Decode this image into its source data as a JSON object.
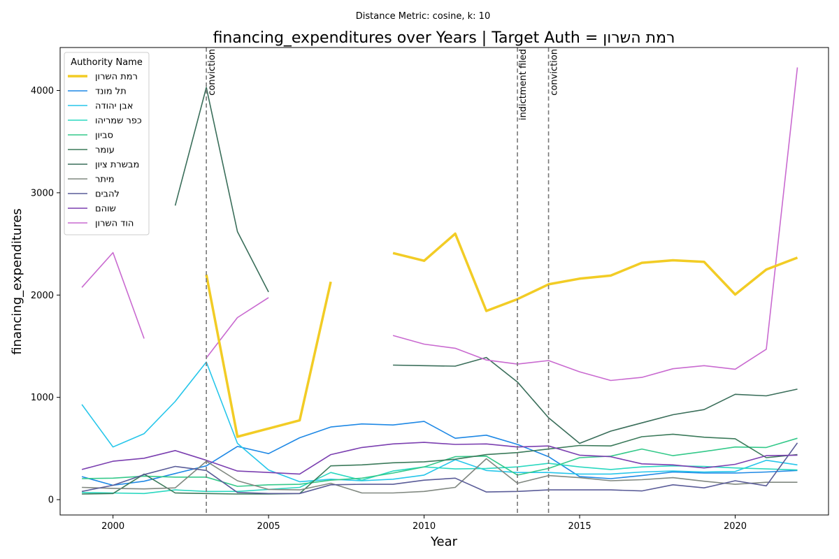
{
  "chart_data": {
    "type": "line",
    "subtitle": "Distance Metric: cosine, k: 10",
    "title": "financing_expenditures over Years | Target Auth = רמת השרון",
    "xlabel": "Year",
    "ylabel": "financing_expenditures",
    "xlim": [
      1998.3,
      2023.0
    ],
    "ylim": [
      -150,
      4420
    ],
    "xticks": [
      2000,
      2005,
      2010,
      2015,
      2020
    ],
    "yticks": [
      0,
      1000,
      2000,
      3000,
      4000
    ],
    "grid": false,
    "legend": {
      "title": "Authority Name",
      "placement": "top-left"
    },
    "events": [
      {
        "x": 2003,
        "label": "conviction"
      },
      {
        "x": 2013,
        "label": "indictment filed"
      },
      {
        "x": 2014,
        "label": "conviction"
      }
    ],
    "series": [
      {
        "name": "רמת השרון",
        "color": "#f2cc25",
        "width": 3.5,
        "target": true,
        "points": [
          [
            2003,
            2200
          ],
          [
            2004,
            615
          ],
          [
            2005,
            695
          ],
          [
            2006,
            775
          ],
          [
            2007,
            2130
          ],
          [
            2008,
            null
          ],
          [
            2009,
            2410
          ],
          [
            2010,
            2335
          ],
          [
            2011,
            2600
          ],
          [
            2012,
            1845
          ],
          [
            2013,
            1960
          ],
          [
            2014,
            2105
          ],
          [
            2015,
            2160
          ],
          [
            2016,
            2190
          ],
          [
            2017,
            2315
          ],
          [
            2018,
            2340
          ],
          [
            2019,
            2325
          ],
          [
            2020,
            2005
          ],
          [
            2021,
            2250
          ],
          [
            2022,
            2365
          ]
        ]
      },
      {
        "name": "תל מונד",
        "color": "#1e88e5",
        "width": 1.6,
        "points": [
          [
            1999,
            225
          ],
          [
            2000,
            140
          ],
          [
            2001,
            180
          ],
          [
            2002,
            255
          ],
          [
            2003,
            330
          ],
          [
            2004,
            520
          ],
          [
            2005,
            450
          ],
          [
            2006,
            605
          ],
          [
            2007,
            710
          ],
          [
            2008,
            740
          ],
          [
            2009,
            730
          ],
          [
            2010,
            765
          ],
          [
            2011,
            600
          ],
          [
            2012,
            630
          ],
          [
            2013,
            540
          ],
          [
            2014,
            420
          ],
          [
            2015,
            225
          ],
          [
            2016,
            205
          ],
          [
            2017,
            235
          ],
          [
            2018,
            270
          ],
          [
            2019,
            260
          ],
          [
            2020,
            260
          ],
          [
            2021,
            270
          ],
          [
            2022,
            285
          ]
        ]
      },
      {
        "name": "אבן יהודה",
        "color": "#26c6ea",
        "width": 1.6,
        "points": [
          [
            1999,
            930
          ],
          [
            2000,
            515
          ],
          [
            2001,
            645
          ],
          [
            2002,
            960
          ],
          [
            2003,
            1345
          ],
          [
            2004,
            550
          ],
          [
            2005,
            290
          ],
          [
            2006,
            175
          ],
          [
            2007,
            200
          ],
          [
            2008,
            185
          ],
          [
            2009,
            200
          ],
          [
            2010,
            240
          ],
          [
            2011,
            390
          ],
          [
            2012,
            285
          ],
          [
            2013,
            265
          ],
          [
            2014,
            265
          ],
          [
            2015,
            250
          ],
          [
            2016,
            250
          ],
          [
            2017,
            270
          ],
          [
            2018,
            280
          ],
          [
            2019,
            270
          ],
          [
            2020,
            275
          ],
          [
            2021,
            385
          ],
          [
            2022,
            340
          ]
        ]
      },
      {
        "name": "כפר שמריהו",
        "color": "#2ad8c0",
        "width": 1.6,
        "points": [
          [
            1999,
            70
          ],
          [
            2000,
            65
          ],
          [
            2001,
            60
          ],
          [
            2002,
            95
          ],
          [
            2003,
            80
          ],
          [
            2004,
            80
          ],
          [
            2005,
            100
          ],
          [
            2006,
            120
          ],
          [
            2007,
            265
          ],
          [
            2008,
            190
          ],
          [
            2009,
            280
          ],
          [
            2010,
            320
          ],
          [
            2011,
            300
          ],
          [
            2012,
            305
          ],
          [
            2013,
            320
          ],
          [
            2014,
            355
          ],
          [
            2015,
            320
          ],
          [
            2016,
            295
          ],
          [
            2017,
            320
          ],
          [
            2018,
            330
          ],
          [
            2019,
            325
          ],
          [
            2020,
            310
          ],
          [
            2021,
            300
          ],
          [
            2022,
            290
          ]
        ]
      },
      {
        "name": "סביון",
        "color": "#34c98a",
        "width": 1.6,
        "points": [
          [
            1999,
            205
          ],
          [
            2000,
            210
          ],
          [
            2001,
            230
          ],
          [
            2002,
            220
          ],
          [
            2003,
            220
          ],
          [
            2004,
            130
          ],
          [
            2005,
            145
          ],
          [
            2006,
            150
          ],
          [
            2007,
            190
          ],
          [
            2008,
            210
          ],
          [
            2009,
            260
          ],
          [
            2010,
            320
          ],
          [
            2011,
            420
          ],
          [
            2012,
            425
          ],
          [
            2013,
            240
          ],
          [
            2014,
            305
          ],
          [
            2015,
            410
          ],
          [
            2016,
            425
          ],
          [
            2017,
            495
          ],
          [
            2018,
            430
          ],
          [
            2019,
            470
          ],
          [
            2020,
            515
          ],
          [
            2021,
            510
          ],
          [
            2022,
            600
          ]
        ]
      },
      {
        "name": "עומר",
        "color": "#3b7a5a",
        "width": 1.6,
        "points": [
          [
            1999,
            55
          ],
          [
            2000,
            60
          ],
          [
            2001,
            250
          ],
          [
            2002,
            65
          ],
          [
            2003,
            60
          ],
          [
            2004,
            55
          ],
          [
            2005,
            55
          ],
          [
            2006,
            60
          ],
          [
            2007,
            330
          ],
          [
            2008,
            340
          ],
          [
            2009,
            360
          ],
          [
            2010,
            370
          ],
          [
            2011,
            395
          ],
          [
            2012,
            440
          ],
          [
            2013,
            460
          ],
          [
            2014,
            495
          ],
          [
            2015,
            530
          ],
          [
            2016,
            525
          ],
          [
            2017,
            615
          ],
          [
            2018,
            640
          ],
          [
            2019,
            610
          ],
          [
            2020,
            595
          ],
          [
            2021,
            410
          ],
          [
            2022,
            440
          ]
        ]
      },
      {
        "name": "מבשרת ציון",
        "color": "#3a6e5a",
        "width": 1.6,
        "points": [
          [
            2002,
            2875
          ],
          [
            2003,
            4030
          ],
          [
            2004,
            2620
          ],
          [
            2005,
            2030
          ],
          [
            2006,
            null
          ],
          [
            2007,
            null
          ],
          [
            2008,
            null
          ],
          [
            2009,
            1315
          ],
          [
            2010,
            1310
          ],
          [
            2011,
            1305
          ],
          [
            2012,
            1390
          ],
          [
            2013,
            1150
          ],
          [
            2014,
            800
          ],
          [
            2015,
            550
          ],
          [
            2016,
            670
          ],
          [
            2017,
            750
          ],
          [
            2018,
            830
          ],
          [
            2019,
            880
          ],
          [
            2020,
            1030
          ],
          [
            2021,
            1015
          ],
          [
            2022,
            1080
          ]
        ]
      },
      {
        "name": "מיתר",
        "color": "#808880",
        "width": 1.6,
        "points": [
          [
            1999,
            120
          ],
          [
            2000,
            110
          ],
          [
            2001,
            105
          ],
          [
            2002,
            115
          ],
          [
            2003,
            375
          ],
          [
            2004,
            185
          ],
          [
            2005,
            100
          ],
          [
            2006,
            95
          ],
          [
            2007,
            160
          ],
          [
            2008,
            65
          ],
          [
            2009,
            65
          ],
          [
            2010,
            80
          ],
          [
            2011,
            120
          ],
          [
            2012,
            400
          ],
          [
            2013,
            160
          ],
          [
            2014,
            235
          ],
          [
            2015,
            215
          ],
          [
            2016,
            185
          ],
          [
            2017,
            195
          ],
          [
            2018,
            215
          ],
          [
            2019,
            180
          ],
          [
            2020,
            150
          ],
          [
            2021,
            170
          ],
          [
            2022,
            170
          ]
        ]
      },
      {
        "name": "להבים",
        "color": "#5a5c98",
        "width": 1.6,
        "points": [
          [
            1999,
            80
          ],
          [
            2000,
            140
          ],
          [
            2001,
            245
          ],
          [
            2002,
            325
          ],
          [
            2003,
            285
          ],
          [
            2004,
            70
          ],
          [
            2005,
            60
          ],
          [
            2006,
            60
          ],
          [
            2007,
            145
          ],
          [
            2008,
            150
          ],
          [
            2009,
            150
          ],
          [
            2010,
            190
          ],
          [
            2011,
            210
          ],
          [
            2012,
            75
          ],
          [
            2013,
            80
          ],
          [
            2014,
            95
          ],
          [
            2015,
            95
          ],
          [
            2016,
            95
          ],
          [
            2017,
            85
          ],
          [
            2018,
            145
          ],
          [
            2019,
            115
          ],
          [
            2020,
            185
          ],
          [
            2021,
            135
          ],
          [
            2022,
            555
          ]
        ]
      },
      {
        "name": "שוהם",
        "color": "#7b3fb0",
        "width": 1.6,
        "points": [
          [
            1999,
            295
          ],
          [
            2000,
            375
          ],
          [
            2001,
            405
          ],
          [
            2002,
            480
          ],
          [
            2003,
            385
          ],
          [
            2004,
            280
          ],
          [
            2005,
            265
          ],
          [
            2006,
            250
          ],
          [
            2007,
            440
          ],
          [
            2008,
            510
          ],
          [
            2009,
            545
          ],
          [
            2010,
            560
          ],
          [
            2011,
            540
          ],
          [
            2012,
            545
          ],
          [
            2013,
            515
          ],
          [
            2014,
            525
          ],
          [
            2015,
            435
          ],
          [
            2016,
            420
          ],
          [
            2017,
            350
          ],
          [
            2018,
            340
          ],
          [
            2019,
            310
          ],
          [
            2020,
            345
          ],
          [
            2021,
            430
          ],
          [
            2022,
            435
          ]
        ]
      },
      {
        "name": "הוד השרון",
        "color": "#c96ad0",
        "width": 1.6,
        "points": [
          [
            1999,
            2075
          ],
          [
            2000,
            2415
          ],
          [
            2001,
            1575
          ],
          [
            2002,
            null
          ],
          [
            2003,
            1385
          ],
          [
            2004,
            1780
          ],
          [
            2005,
            1975
          ],
          [
            2006,
            null
          ],
          [
            2007,
            null
          ],
          [
            2008,
            null
          ],
          [
            2009,
            1605
          ],
          [
            2010,
            1520
          ],
          [
            2011,
            1480
          ],
          [
            2012,
            1365
          ],
          [
            2013,
            1325
          ],
          [
            2014,
            1360
          ],
          [
            2015,
            1250
          ],
          [
            2016,
            1165
          ],
          [
            2017,
            1195
          ],
          [
            2018,
            1280
          ],
          [
            2019,
            1310
          ],
          [
            2020,
            1275
          ],
          [
            2021,
            1470
          ],
          [
            2022,
            4225
          ]
        ]
      }
    ]
  }
}
